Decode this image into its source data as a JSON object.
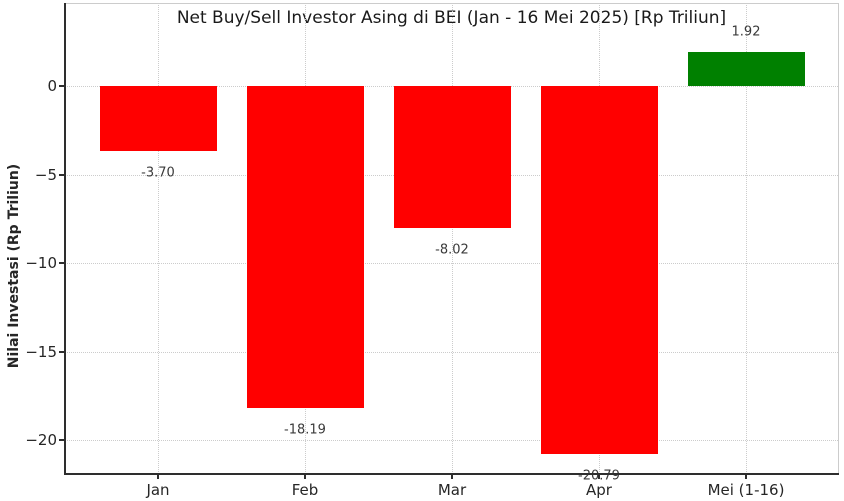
{
  "chart_data": {
    "type": "bar",
    "title": "Net Buy/Sell Investor Asing di BEI (Jan - 16 Mei 2025) [Rp Triliun]",
    "xlabel": "",
    "ylabel": "Nilai Investasi (Rp Triliun)",
    "categories": [
      "Jan",
      "Feb",
      "Mar",
      "Apr",
      "Mei (1-16)"
    ],
    "values": [
      -3.7,
      -18.19,
      -8.02,
      -20.79,
      1.92
    ],
    "value_labels": [
      "-3.70",
      "-18.19",
      "-8.02",
      "-20.79",
      "1.92"
    ],
    "yticks": [
      0,
      -5,
      -10,
      -15,
      -20
    ],
    "ytick_labels": [
      "0",
      "−5",
      "−10",
      "−15",
      "−20"
    ],
    "ylim": [
      -21.9,
      4.7
    ],
    "grid": "dotted both axes",
    "legend": "none",
    "colors": {
      "negative_bar": "#ff0000",
      "positive_bar": "#008000",
      "grid": "#cccccc",
      "axis": "#2e2e2e",
      "spine_light": "#cccccc",
      "tick_text": "#262626",
      "value_label_text": "#3a3a3a",
      "background": "#ffffff"
    }
  }
}
